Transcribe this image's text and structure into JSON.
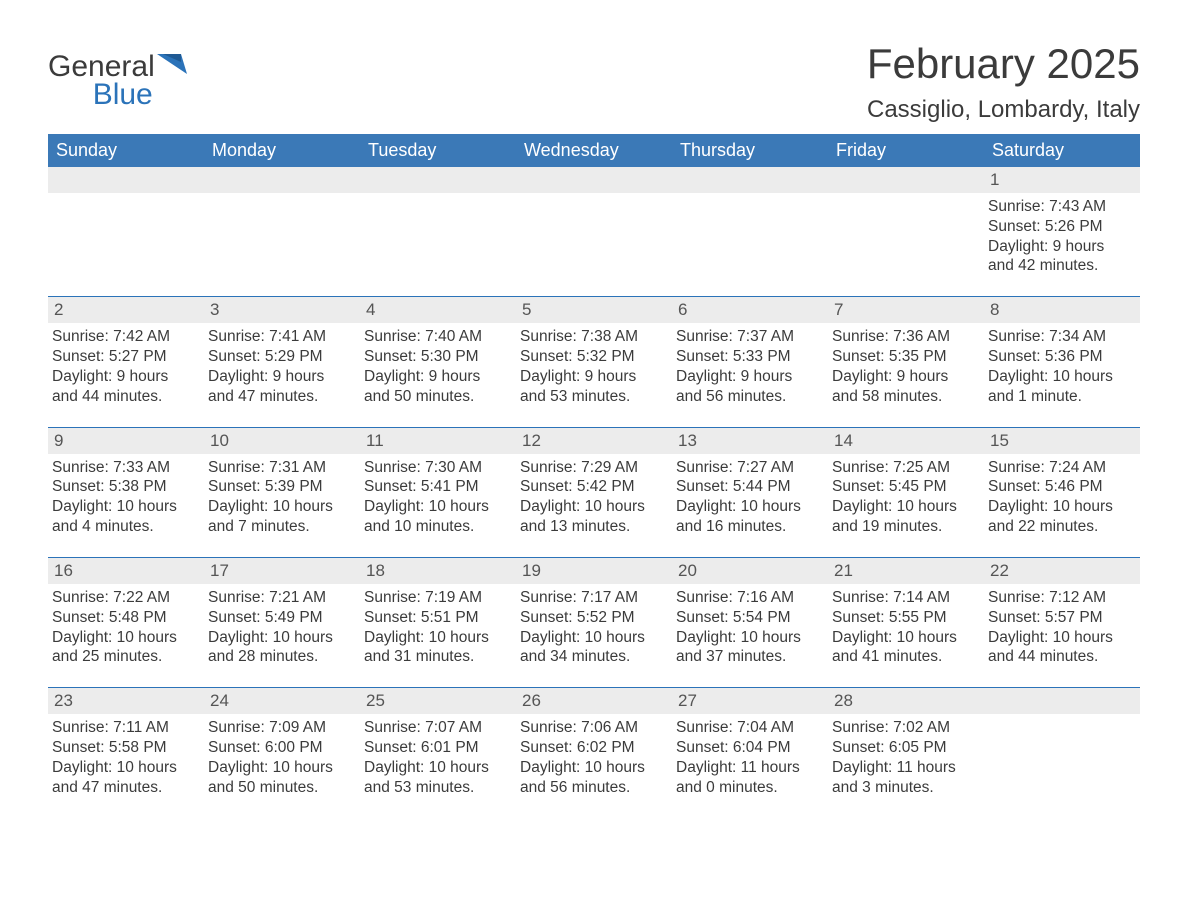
{
  "logo": {
    "word1": "General",
    "word2": "Blue"
  },
  "title": "February 2025",
  "location": "Cassiglio, Lombardy, Italy",
  "colors": {
    "header_bg": "#3b79b7",
    "header_text": "#ffffff",
    "band_bg": "#ececec",
    "rule": "#2b73b9",
    "body_text": "#3b3b3b",
    "logo_blue": "#2b73b9"
  },
  "weekdays": [
    "Sunday",
    "Monday",
    "Tuesday",
    "Wednesday",
    "Thursday",
    "Friday",
    "Saturday"
  ],
  "weeks": [
    [
      {
        "blank": true
      },
      {
        "blank": true
      },
      {
        "blank": true
      },
      {
        "blank": true
      },
      {
        "blank": true
      },
      {
        "blank": true
      },
      {
        "day": "1",
        "sunrise": "Sunrise: 7:43 AM",
        "sunset": "Sunset: 5:26 PM",
        "daylight": "Daylight: 9 hours and 42 minutes."
      }
    ],
    [
      {
        "day": "2",
        "sunrise": "Sunrise: 7:42 AM",
        "sunset": "Sunset: 5:27 PM",
        "daylight": "Daylight: 9 hours and 44 minutes."
      },
      {
        "day": "3",
        "sunrise": "Sunrise: 7:41 AM",
        "sunset": "Sunset: 5:29 PM",
        "daylight": "Daylight: 9 hours and 47 minutes."
      },
      {
        "day": "4",
        "sunrise": "Sunrise: 7:40 AM",
        "sunset": "Sunset: 5:30 PM",
        "daylight": "Daylight: 9 hours and 50 minutes."
      },
      {
        "day": "5",
        "sunrise": "Sunrise: 7:38 AM",
        "sunset": "Sunset: 5:32 PM",
        "daylight": "Daylight: 9 hours and 53 minutes."
      },
      {
        "day": "6",
        "sunrise": "Sunrise: 7:37 AM",
        "sunset": "Sunset: 5:33 PM",
        "daylight": "Daylight: 9 hours and 56 minutes."
      },
      {
        "day": "7",
        "sunrise": "Sunrise: 7:36 AM",
        "sunset": "Sunset: 5:35 PM",
        "daylight": "Daylight: 9 hours and 58 minutes."
      },
      {
        "day": "8",
        "sunrise": "Sunrise: 7:34 AM",
        "sunset": "Sunset: 5:36 PM",
        "daylight": "Daylight: 10 hours and 1 minute."
      }
    ],
    [
      {
        "day": "9",
        "sunrise": "Sunrise: 7:33 AM",
        "sunset": "Sunset: 5:38 PM",
        "daylight": "Daylight: 10 hours and 4 minutes."
      },
      {
        "day": "10",
        "sunrise": "Sunrise: 7:31 AM",
        "sunset": "Sunset: 5:39 PM",
        "daylight": "Daylight: 10 hours and 7 minutes."
      },
      {
        "day": "11",
        "sunrise": "Sunrise: 7:30 AM",
        "sunset": "Sunset: 5:41 PM",
        "daylight": "Daylight: 10 hours and 10 minutes."
      },
      {
        "day": "12",
        "sunrise": "Sunrise: 7:29 AM",
        "sunset": "Sunset: 5:42 PM",
        "daylight": "Daylight: 10 hours and 13 minutes."
      },
      {
        "day": "13",
        "sunrise": "Sunrise: 7:27 AM",
        "sunset": "Sunset: 5:44 PM",
        "daylight": "Daylight: 10 hours and 16 minutes."
      },
      {
        "day": "14",
        "sunrise": "Sunrise: 7:25 AM",
        "sunset": "Sunset: 5:45 PM",
        "daylight": "Daylight: 10 hours and 19 minutes."
      },
      {
        "day": "15",
        "sunrise": "Sunrise: 7:24 AM",
        "sunset": "Sunset: 5:46 PM",
        "daylight": "Daylight: 10 hours and 22 minutes."
      }
    ],
    [
      {
        "day": "16",
        "sunrise": "Sunrise: 7:22 AM",
        "sunset": "Sunset: 5:48 PM",
        "daylight": "Daylight: 10 hours and 25 minutes."
      },
      {
        "day": "17",
        "sunrise": "Sunrise: 7:21 AM",
        "sunset": "Sunset: 5:49 PM",
        "daylight": "Daylight: 10 hours and 28 minutes."
      },
      {
        "day": "18",
        "sunrise": "Sunrise: 7:19 AM",
        "sunset": "Sunset: 5:51 PM",
        "daylight": "Daylight: 10 hours and 31 minutes."
      },
      {
        "day": "19",
        "sunrise": "Sunrise: 7:17 AM",
        "sunset": "Sunset: 5:52 PM",
        "daylight": "Daylight: 10 hours and 34 minutes."
      },
      {
        "day": "20",
        "sunrise": "Sunrise: 7:16 AM",
        "sunset": "Sunset: 5:54 PM",
        "daylight": "Daylight: 10 hours and 37 minutes."
      },
      {
        "day": "21",
        "sunrise": "Sunrise: 7:14 AM",
        "sunset": "Sunset: 5:55 PM",
        "daylight": "Daylight: 10 hours and 41 minutes."
      },
      {
        "day": "22",
        "sunrise": "Sunrise: 7:12 AM",
        "sunset": "Sunset: 5:57 PM",
        "daylight": "Daylight: 10 hours and 44 minutes."
      }
    ],
    [
      {
        "day": "23",
        "sunrise": "Sunrise: 7:11 AM",
        "sunset": "Sunset: 5:58 PM",
        "daylight": "Daylight: 10 hours and 47 minutes."
      },
      {
        "day": "24",
        "sunrise": "Sunrise: 7:09 AM",
        "sunset": "Sunset: 6:00 PM",
        "daylight": "Daylight: 10 hours and 50 minutes."
      },
      {
        "day": "25",
        "sunrise": "Sunrise: 7:07 AM",
        "sunset": "Sunset: 6:01 PM",
        "daylight": "Daylight: 10 hours and 53 minutes."
      },
      {
        "day": "26",
        "sunrise": "Sunrise: 7:06 AM",
        "sunset": "Sunset: 6:02 PM",
        "daylight": "Daylight: 10 hours and 56 minutes."
      },
      {
        "day": "27",
        "sunrise": "Sunrise: 7:04 AM",
        "sunset": "Sunset: 6:04 PM",
        "daylight": "Daylight: 11 hours and 0 minutes."
      },
      {
        "day": "28",
        "sunrise": "Sunrise: 7:02 AM",
        "sunset": "Sunset: 6:05 PM",
        "daylight": "Daylight: 11 hours and 3 minutes."
      },
      {
        "blank": true
      }
    ]
  ]
}
